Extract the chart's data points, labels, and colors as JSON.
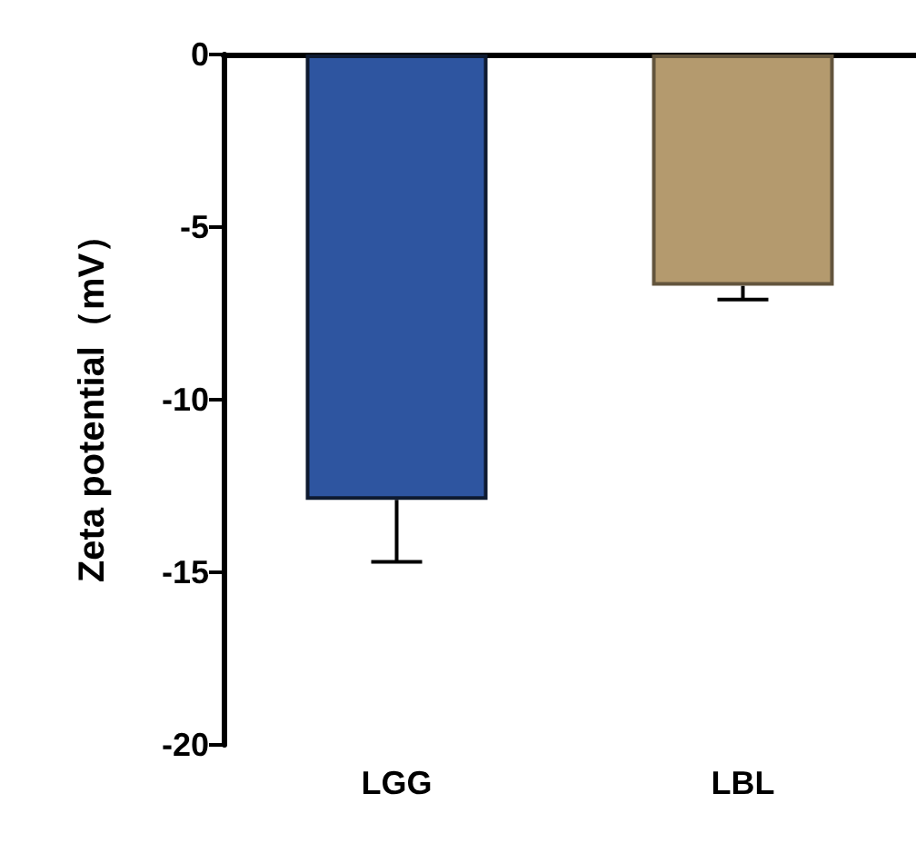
{
  "chart_data": {
    "type": "bar",
    "ylabel": "Zeta potential（mV）",
    "categories": [
      "LGG",
      "LBL"
    ],
    "values": [
      -12.9,
      -6.7
    ],
    "colors": [
      "#2e55a0",
      "#b49a6e"
    ],
    "errors": [
      [
        -14.7,
        -12.9
      ],
      [
        -7.1,
        -6.7
      ]
    ],
    "ylim": [
      -20,
      0
    ],
    "yticks": [
      0,
      -5,
      -10,
      -15,
      -20
    ],
    "grid": false
  }
}
